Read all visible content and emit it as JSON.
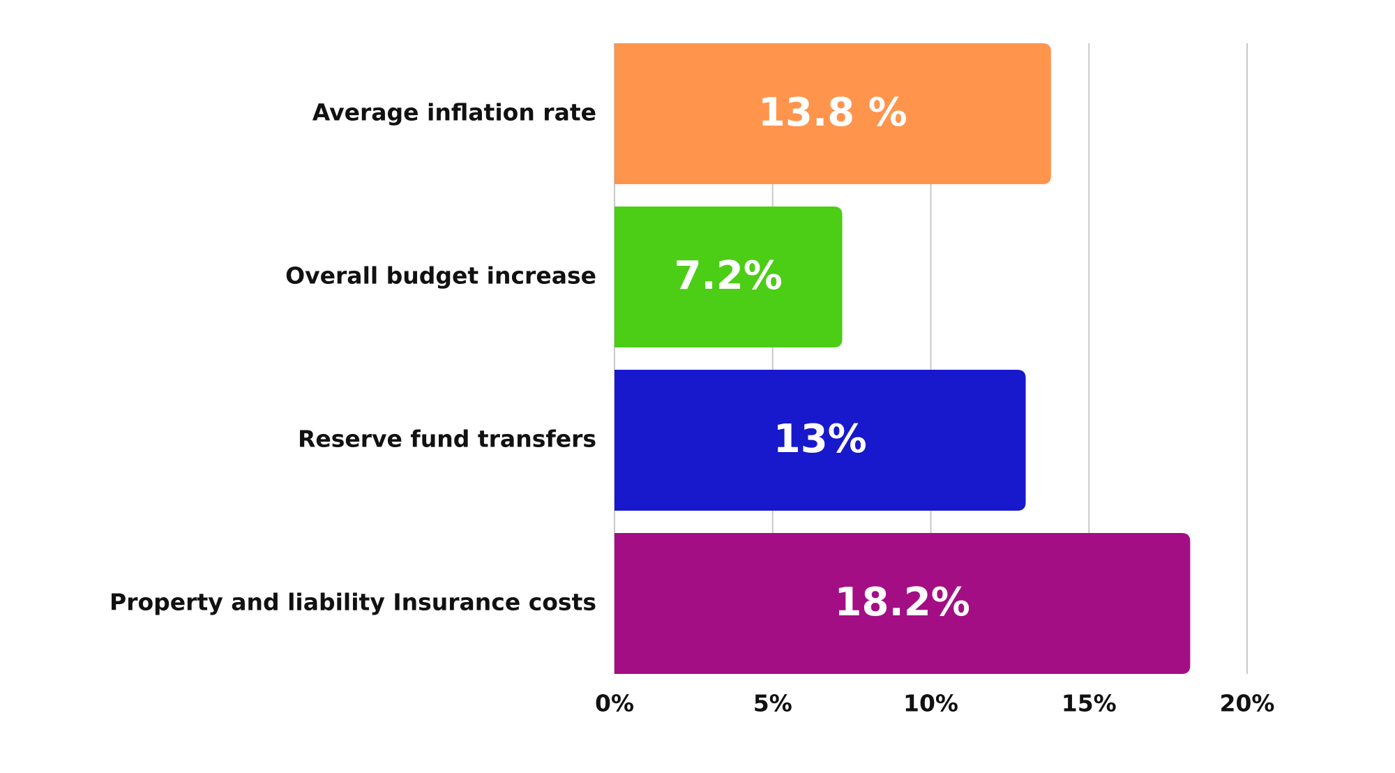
{
  "chart_data": {
    "type": "bar",
    "orientation": "horizontal",
    "title": "",
    "xlabel": "",
    "ylabel": "",
    "categories": [
      "Average inflation rate",
      "Overall budget increase",
      "Reserve fund transfers",
      "Property and liability Insurance costs"
    ],
    "values": [
      13.8,
      7.2,
      13,
      18.2
    ],
    "value_labels": [
      "13.8 %",
      "7.2%",
      "13%",
      "18.2%"
    ],
    "bar_colors": [
      "#ff944d",
      "#4ccd16",
      "#1818cc",
      "#a30e85"
    ],
    "xlim": [
      0,
      20
    ],
    "x_ticks": [
      0,
      5,
      10,
      15,
      20
    ],
    "x_tick_labels": [
      "0%",
      "5%",
      "10%",
      "15%",
      "20%"
    ],
    "grid": true,
    "grid_axis": "x",
    "grid_color": "#c8c8c8",
    "legend": "none"
  }
}
